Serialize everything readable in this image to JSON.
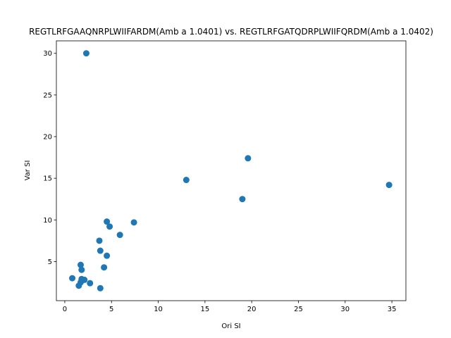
{
  "chart_data": {
    "type": "scatter",
    "title": "REGTLRFGAAQNRPLWIIFARDM(Amb a 1.0401) vs. REGTLRFGATQDRPLWIIFQRDM(Amb a 1.0402)",
    "xlabel": "Ori SI",
    "ylabel": "Var SI",
    "xlim": [
      -0.9,
      36.5
    ],
    "ylim": [
      0.3,
      31.5
    ],
    "xticks": [
      0,
      5,
      10,
      15,
      20,
      25,
      30,
      35
    ],
    "yticks": [
      5,
      10,
      15,
      20,
      25,
      30
    ],
    "marker_color": "#1f77b4",
    "grid": false,
    "points": [
      {
        "x": 2.3,
        "y": 30.0
      },
      {
        "x": 19.6,
        "y": 17.4
      },
      {
        "x": 13.0,
        "y": 14.8
      },
      {
        "x": 34.7,
        "y": 14.2
      },
      {
        "x": 19.0,
        "y": 12.5
      },
      {
        "x": 4.5,
        "y": 9.8
      },
      {
        "x": 7.4,
        "y": 9.7
      },
      {
        "x": 4.8,
        "y": 9.2
      },
      {
        "x": 5.9,
        "y": 8.2
      },
      {
        "x": 3.7,
        "y": 7.5
      },
      {
        "x": 3.8,
        "y": 6.3
      },
      {
        "x": 4.5,
        "y": 5.7
      },
      {
        "x": 1.7,
        "y": 4.6
      },
      {
        "x": 4.2,
        "y": 4.3
      },
      {
        "x": 1.8,
        "y": 4.0
      },
      {
        "x": 0.8,
        "y": 3.0
      },
      {
        "x": 1.8,
        "y": 2.9
      },
      {
        "x": 2.1,
        "y": 2.8
      },
      {
        "x": 1.7,
        "y": 2.5
      },
      {
        "x": 2.7,
        "y": 2.4
      },
      {
        "x": 1.5,
        "y": 2.1
      },
      {
        "x": 3.8,
        "y": 1.8
      }
    ]
  }
}
